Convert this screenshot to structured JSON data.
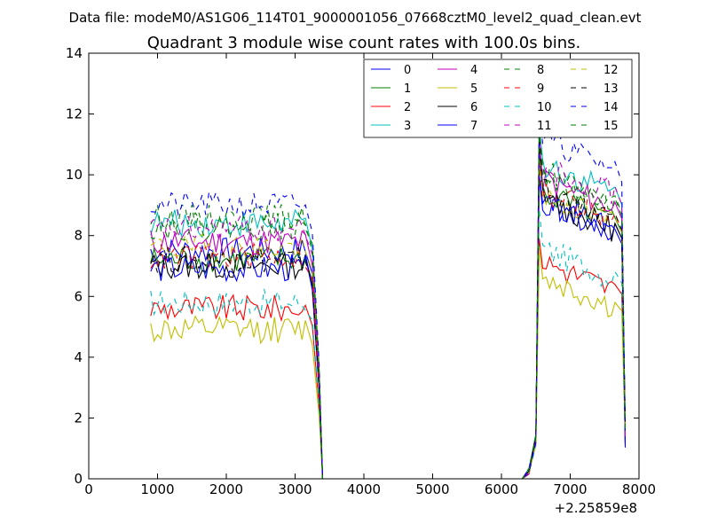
{
  "figure": {
    "suptitle": "Data file: modeM0/AS1G06_114T01_9000001056_07668cztM0_level2_quad_clean.evt",
    "offset_label": "+2.25859e8"
  },
  "chart_data": {
    "type": "line",
    "title": "Quadrant 3 module wise count rates with 100.0s bins.",
    "xlabel": "",
    "ylabel": "",
    "xlim": [
      0,
      8000
    ],
    "ylim": [
      0,
      14
    ],
    "x_offset": 225859000,
    "x_ticks": [
      0,
      1000,
      2000,
      3000,
      4000,
      5000,
      6000,
      7000,
      8000
    ],
    "y_ticks": [
      0,
      2,
      4,
      6,
      8,
      10,
      12,
      14
    ],
    "grid": false,
    "legend": {
      "position": "top-right",
      "columns": 4
    },
    "segment_times": [
      900,
      3150,
      3250,
      3350,
      3400,
      6300,
      6400,
      6500,
      6550,
      7650,
      7750,
      7800
    ],
    "gap_times": [
      3500,
      3600,
      3700,
      3800,
      3900,
      4000,
      4100,
      4200,
      4300,
      4400,
      4500,
      4600,
      4700,
      4800,
      4900,
      5000,
      5100,
      5200,
      5300,
      5400,
      5500,
      5600,
      5700,
      5800,
      5900,
      6000,
      6100,
      6200
    ],
    "series": [
      {
        "name": "0",
        "color": "#0000ff",
        "dash": "solid",
        "first_level": 7.5,
        "second_level": 8.6
      },
      {
        "name": "1",
        "color": "#008000",
        "dash": "solid",
        "first_level": 7.2,
        "second_level": 8.8
      },
      {
        "name": "2",
        "color": "#ff0000",
        "dash": "solid",
        "first_level": 5.6,
        "second_level": 6.6
      },
      {
        "name": "3",
        "color": "#00bfbf",
        "dash": "solid",
        "first_level": 8.4,
        "second_level": 9.8
      },
      {
        "name": "4",
        "color": "#bf00bf",
        "dash": "solid",
        "first_level": 7.8,
        "second_level": 9.3
      },
      {
        "name": "5",
        "color": "#bfbf00",
        "dash": "solid",
        "first_level": 4.9,
        "second_level": 6.0
      },
      {
        "name": "6",
        "color": "#000000",
        "dash": "solid",
        "first_level": 7.0,
        "second_level": 8.6
      },
      {
        "name": "7",
        "color": "#0000ff",
        "dash": "solid",
        "first_level": 6.9,
        "second_level": 8.4
      },
      {
        "name": "8",
        "color": "#008000",
        "dash": "dashed",
        "first_level": 8.6,
        "second_level": 9.5
      },
      {
        "name": "9",
        "color": "#ff0000",
        "dash": "dashed",
        "first_level": 7.3,
        "second_level": 8.9
      },
      {
        "name": "10",
        "color": "#00bfbf",
        "dash": "dashed",
        "first_level": 5.8,
        "second_level": 7.0
      },
      {
        "name": "11",
        "color": "#bf00bf",
        "dash": "dashed",
        "first_level": 8.2,
        "second_level": 9.8
      },
      {
        "name": "12",
        "color": "#bfbf00",
        "dash": "dashed",
        "first_level": 7.6,
        "second_level": 8.8
      },
      {
        "name": "13",
        "color": "#000000",
        "dash": "dashed",
        "first_level": 7.2,
        "second_level": 8.9
      },
      {
        "name": "14",
        "color": "#0000ff",
        "dash": "dashed",
        "first_level": 9.0,
        "second_level": 10.6
      },
      {
        "name": "15",
        "color": "#008000",
        "dash": "dashed",
        "first_level": 8.3,
        "second_level": 9.4
      }
    ]
  }
}
